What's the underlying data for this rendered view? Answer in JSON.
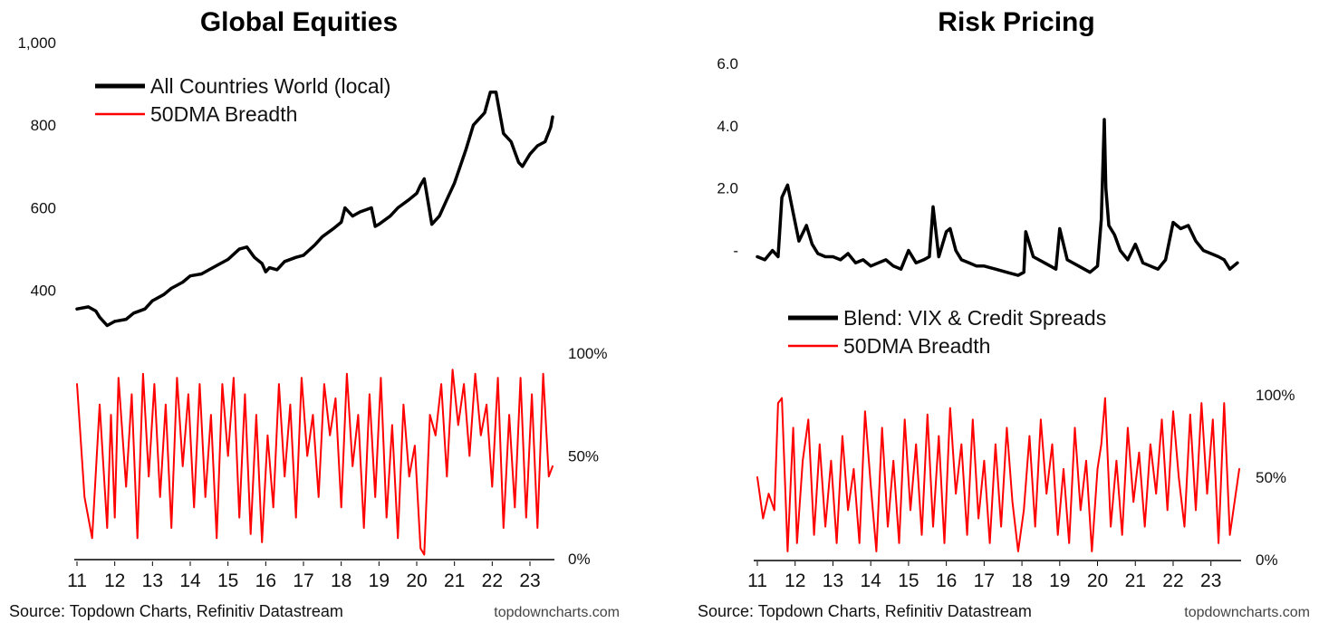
{
  "colors": {
    "index": "#000000",
    "breadth": "#ff0000"
  },
  "chart_data": [
    {
      "type": "line",
      "title": "Global Equities",
      "x_ticks": [
        "11",
        "12",
        "13",
        "14",
        "15",
        "16",
        "17",
        "18",
        "19",
        "20",
        "21",
        "22",
        "23"
      ],
      "x_range": [
        2011.0,
        2023.6
      ],
      "left_axis": {
        "ticks": [
          "1,000",
          "800",
          "600",
          "400"
        ],
        "tick_values": [
          1000,
          800,
          600,
          400
        ],
        "range": [
          270,
          1000
        ]
      },
      "right_axis": {
        "ticks": [
          "100%",
          "50%",
          "0%"
        ],
        "tick_values": [
          100,
          50,
          0
        ],
        "range": [
          0,
          100
        ]
      },
      "legend": [
        "All Countries World (local)",
        "50DMA Breadth"
      ],
      "legend_position": "top-left",
      "series": [
        {
          "name": "All Countries World (local)",
          "axis": "left",
          "x": [
            2011.0,
            2011.3,
            2011.5,
            2011.6,
            2011.8,
            2012.0,
            2012.3,
            2012.5,
            2012.8,
            2013.0,
            2013.3,
            2013.5,
            2013.8,
            2014.0,
            2014.3,
            2014.5,
            2014.8,
            2015.0,
            2015.3,
            2015.5,
            2015.7,
            2015.9,
            2016.0,
            2016.1,
            2016.3,
            2016.5,
            2016.8,
            2017.0,
            2017.3,
            2017.5,
            2017.8,
            2018.0,
            2018.1,
            2018.3,
            2018.5,
            2018.8,
            2018.9,
            2019.0,
            2019.3,
            2019.5,
            2019.8,
            2020.0,
            2020.1,
            2020.2,
            2020.4,
            2020.6,
            2020.8,
            2021.0,
            2021.3,
            2021.5,
            2021.8,
            2021.95,
            2022.1,
            2022.3,
            2022.5,
            2022.7,
            2022.8,
            2023.0,
            2023.2,
            2023.4,
            2023.55,
            2023.6
          ],
          "values": [
            355,
            360,
            350,
            335,
            315,
            325,
            330,
            345,
            355,
            375,
            390,
            405,
            420,
            435,
            440,
            450,
            465,
            475,
            500,
            505,
            480,
            465,
            445,
            455,
            450,
            470,
            480,
            485,
            510,
            530,
            550,
            565,
            600,
            580,
            590,
            600,
            555,
            560,
            580,
            600,
            620,
            635,
            655,
            670,
            560,
            580,
            620,
            660,
            740,
            800,
            830,
            880,
            880,
            780,
            760,
            710,
            700,
            730,
            750,
            760,
            795,
            820
          ]
        },
        {
          "name": "50DMA Breadth",
          "axis": "right",
          "x": [
            2011.0,
            2011.2,
            2011.4,
            2011.6,
            2011.8,
            2011.9,
            2012.0,
            2012.1,
            2012.3,
            2012.45,
            2012.6,
            2012.75,
            2012.9,
            2013.05,
            2013.2,
            2013.35,
            2013.5,
            2013.65,
            2013.8,
            2013.95,
            2014.1,
            2014.25,
            2014.4,
            2014.55,
            2014.7,
            2014.85,
            2015.0,
            2015.15,
            2015.3,
            2015.45,
            2015.6,
            2015.75,
            2015.9,
            2016.05,
            2016.2,
            2016.35,
            2016.5,
            2016.65,
            2016.8,
            2016.95,
            2017.1,
            2017.25,
            2017.4,
            2017.55,
            2017.7,
            2017.85,
            2018.0,
            2018.15,
            2018.3,
            2018.45,
            2018.6,
            2018.75,
            2018.9,
            2019.05,
            2019.2,
            2019.35,
            2019.5,
            2019.65,
            2019.8,
            2019.95,
            2020.1,
            2020.2,
            2020.35,
            2020.5,
            2020.65,
            2020.8,
            2020.95,
            2021.1,
            2021.25,
            2021.4,
            2021.55,
            2021.7,
            2021.85,
            2022.0,
            2022.15,
            2022.3,
            2022.45,
            2022.6,
            2022.75,
            2022.9,
            2023.05,
            2023.2,
            2023.35,
            2023.5,
            2023.6
          ],
          "values": [
            85,
            30,
            10,
            75,
            15,
            70,
            20,
            88,
            35,
            80,
            10,
            90,
            40,
            85,
            30,
            75,
            15,
            88,
            45,
            80,
            25,
            85,
            30,
            70,
            10,
            85,
            50,
            88,
            20,
            80,
            12,
            70,
            8,
            60,
            25,
            85,
            40,
            75,
            20,
            88,
            50,
            70,
            30,
            85,
            60,
            78,
            25,
            90,
            45,
            70,
            15,
            80,
            30,
            88,
            20,
            65,
            10,
            75,
            40,
            55,
            5,
            2,
            70,
            60,
            85,
            40,
            92,
            65,
            85,
            50,
            90,
            60,
            75,
            35,
            88,
            15,
            70,
            25,
            88,
            20,
            80,
            15,
            90,
            40,
            45
          ]
        }
      ]
    },
    {
      "type": "line",
      "title": "Risk Pricing",
      "x_ticks": [
        "11",
        "12",
        "13",
        "14",
        "15",
        "16",
        "17",
        "18",
        "19",
        "20",
        "21",
        "22",
        "23"
      ],
      "x_range": [
        2011.0,
        2023.75
      ],
      "left_axis": {
        "ticks": [
          "6.0",
          "4.0",
          "2.0",
          "-"
        ],
        "tick_values": [
          6.0,
          4.0,
          2.0,
          0.0
        ],
        "range": [
          -1.0,
          6.0
        ]
      },
      "right_axis": {
        "ticks": [
          "100%",
          "50%",
          "0%"
        ],
        "tick_values": [
          100,
          50,
          0
        ],
        "range": [
          0,
          100
        ]
      },
      "legend": [
        "Blend: VIX & Credit Spreads",
        "50DMA Breadth"
      ],
      "legend_position": "center-left",
      "series": [
        {
          "name": "Blend: VIX & Credit Spreads",
          "axis": "left",
          "x": [
            2011.0,
            2011.2,
            2011.4,
            2011.55,
            2011.65,
            2011.8,
            2011.95,
            2012.1,
            2012.3,
            2012.45,
            2012.6,
            2012.8,
            2013.0,
            2013.2,
            2013.4,
            2013.6,
            2013.8,
            2014.0,
            2014.2,
            2014.4,
            2014.6,
            2014.8,
            2015.0,
            2015.2,
            2015.4,
            2015.55,
            2015.65,
            2015.8,
            2016.0,
            2016.1,
            2016.25,
            2016.4,
            2016.6,
            2016.8,
            2017.0,
            2017.3,
            2017.6,
            2017.9,
            2018.05,
            2018.1,
            2018.3,
            2018.6,
            2018.9,
            2019.0,
            2019.2,
            2019.5,
            2019.8,
            2020.0,
            2020.1,
            2020.18,
            2020.22,
            2020.3,
            2020.45,
            2020.6,
            2020.8,
            2021.0,
            2021.2,
            2021.4,
            2021.6,
            2021.8,
            2022.0,
            2022.2,
            2022.4,
            2022.6,
            2022.8,
            2023.0,
            2023.2,
            2023.35,
            2023.5,
            2023.7
          ],
          "values": [
            -0.2,
            -0.3,
            0.0,
            -0.2,
            1.7,
            2.1,
            1.2,
            0.3,
            0.8,
            0.2,
            -0.1,
            -0.2,
            -0.2,
            -0.3,
            -0.1,
            -0.4,
            -0.3,
            -0.5,
            -0.4,
            -0.3,
            -0.5,
            -0.6,
            0.0,
            -0.4,
            -0.3,
            -0.2,
            1.4,
            -0.2,
            0.6,
            0.7,
            0.0,
            -0.3,
            -0.4,
            -0.5,
            -0.5,
            -0.6,
            -0.7,
            -0.8,
            -0.7,
            0.6,
            -0.2,
            -0.4,
            -0.6,
            0.7,
            -0.3,
            -0.5,
            -0.7,
            -0.5,
            1.0,
            4.2,
            2.0,
            0.8,
            0.5,
            0.0,
            -0.3,
            0.2,
            -0.4,
            -0.5,
            -0.6,
            -0.3,
            0.9,
            0.7,
            0.8,
            0.3,
            0.0,
            -0.1,
            -0.2,
            -0.3,
            -0.6,
            -0.4
          ]
        },
        {
          "name": "50DMA Breadth",
          "axis": "right",
          "x": [
            2011.0,
            2011.15,
            2011.3,
            2011.45,
            2011.55,
            2011.65,
            2011.8,
            2011.95,
            2012.05,
            2012.2,
            2012.35,
            2012.5,
            2012.65,
            2012.8,
            2012.95,
            2013.1,
            2013.25,
            2013.4,
            2013.55,
            2013.7,
            2013.85,
            2014.0,
            2014.15,
            2014.3,
            2014.45,
            2014.6,
            2014.75,
            2014.9,
            2015.05,
            2015.2,
            2015.35,
            2015.5,
            2015.65,
            2015.8,
            2015.95,
            2016.1,
            2016.25,
            2016.4,
            2016.55,
            2016.7,
            2016.85,
            2017.0,
            2017.15,
            2017.3,
            2017.45,
            2017.6,
            2017.75,
            2017.9,
            2018.05,
            2018.2,
            2018.35,
            2018.5,
            2018.65,
            2018.8,
            2018.95,
            2019.1,
            2019.25,
            2019.4,
            2019.55,
            2019.7,
            2019.85,
            2020.0,
            2020.1,
            2020.2,
            2020.35,
            2020.5,
            2020.65,
            2020.8,
            2020.95,
            2021.1,
            2021.25,
            2021.4,
            2021.55,
            2021.7,
            2021.85,
            2022.0,
            2022.15,
            2022.3,
            2022.45,
            2022.6,
            2022.75,
            2022.9,
            2023.05,
            2023.2,
            2023.35,
            2023.5,
            2023.75
          ],
          "values": [
            50,
            25,
            40,
            30,
            95,
            98,
            5,
            80,
            10,
            60,
            85,
            15,
            70,
            20,
            60,
            10,
            75,
            30,
            55,
            10,
            90,
            45,
            5,
            80,
            20,
            60,
            10,
            85,
            30,
            70,
            15,
            88,
            20,
            75,
            10,
            92,
            40,
            70,
            15,
            85,
            25,
            60,
            10,
            70,
            20,
            80,
            35,
            5,
            30,
            75,
            20,
            85,
            40,
            70,
            15,
            55,
            10,
            80,
            30,
            60,
            5,
            55,
            70,
            98,
            20,
            60,
            15,
            80,
            35,
            65,
            20,
            70,
            40,
            85,
            30,
            90,
            50,
            20,
            88,
            30,
            95,
            40,
            85,
            10,
            95,
            15,
            55
          ]
        }
      ]
    }
  ],
  "footer": {
    "left_source": "Source: Topdown Charts, Refinitiv Datastream",
    "left_brand": "topdowncharts.com",
    "right_source": "Source: Topdown Charts, Refinitiv Datastream",
    "right_brand": "topdowncharts.com"
  }
}
